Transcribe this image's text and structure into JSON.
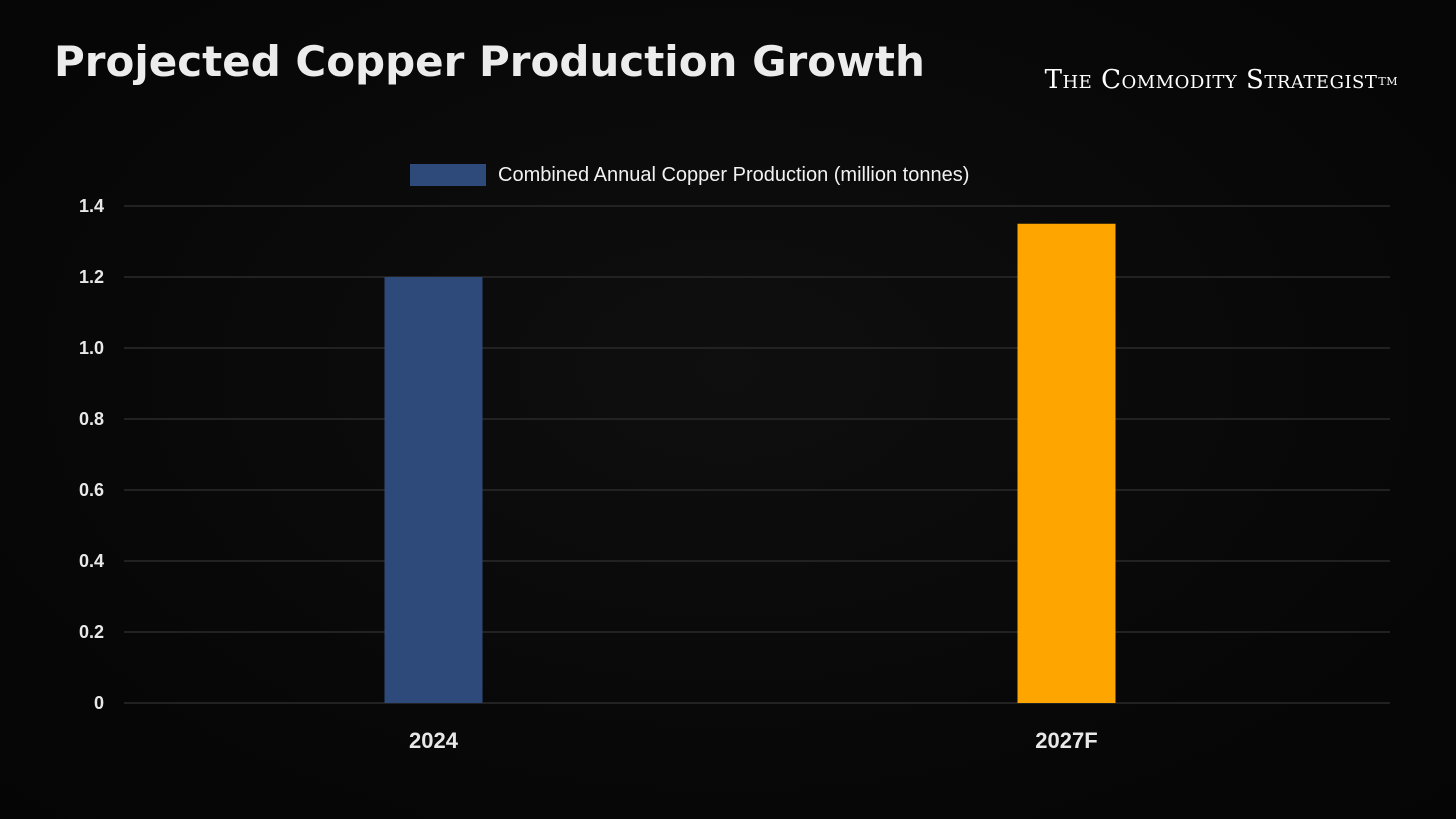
{
  "header": {
    "title": "Projected Copper Production Growth",
    "brand": "The Commodity  Strategist",
    "brand_mark": "TM"
  },
  "chart_data": {
    "type": "bar",
    "categories": [
      "2024",
      "2027F"
    ],
    "series": [
      {
        "name": "Combined Annual Copper Production (million tonnes)",
        "values": [
          1.2,
          1.35
        ],
        "colors": [
          "#2e4a7a",
          "#ffa500"
        ]
      }
    ],
    "ylim": [
      0,
      1.4
    ],
    "yticks": [
      0,
      0.2,
      0.4,
      0.6,
      0.8,
      1.0,
      1.2,
      1.4
    ],
    "ytick_labels": [
      "0",
      "0.2",
      "0.4",
      "0.6",
      "0.8",
      "1.0",
      "1.2",
      "1.4"
    ],
    "grid": true,
    "legend": "top",
    "title": "",
    "xlabel": "",
    "ylabel": ""
  },
  "colors": {
    "background": "#080808",
    "grid": "#2a2a2a",
    "text": "#e8e8e8",
    "legend_swatch": "#2e4a7a"
  }
}
